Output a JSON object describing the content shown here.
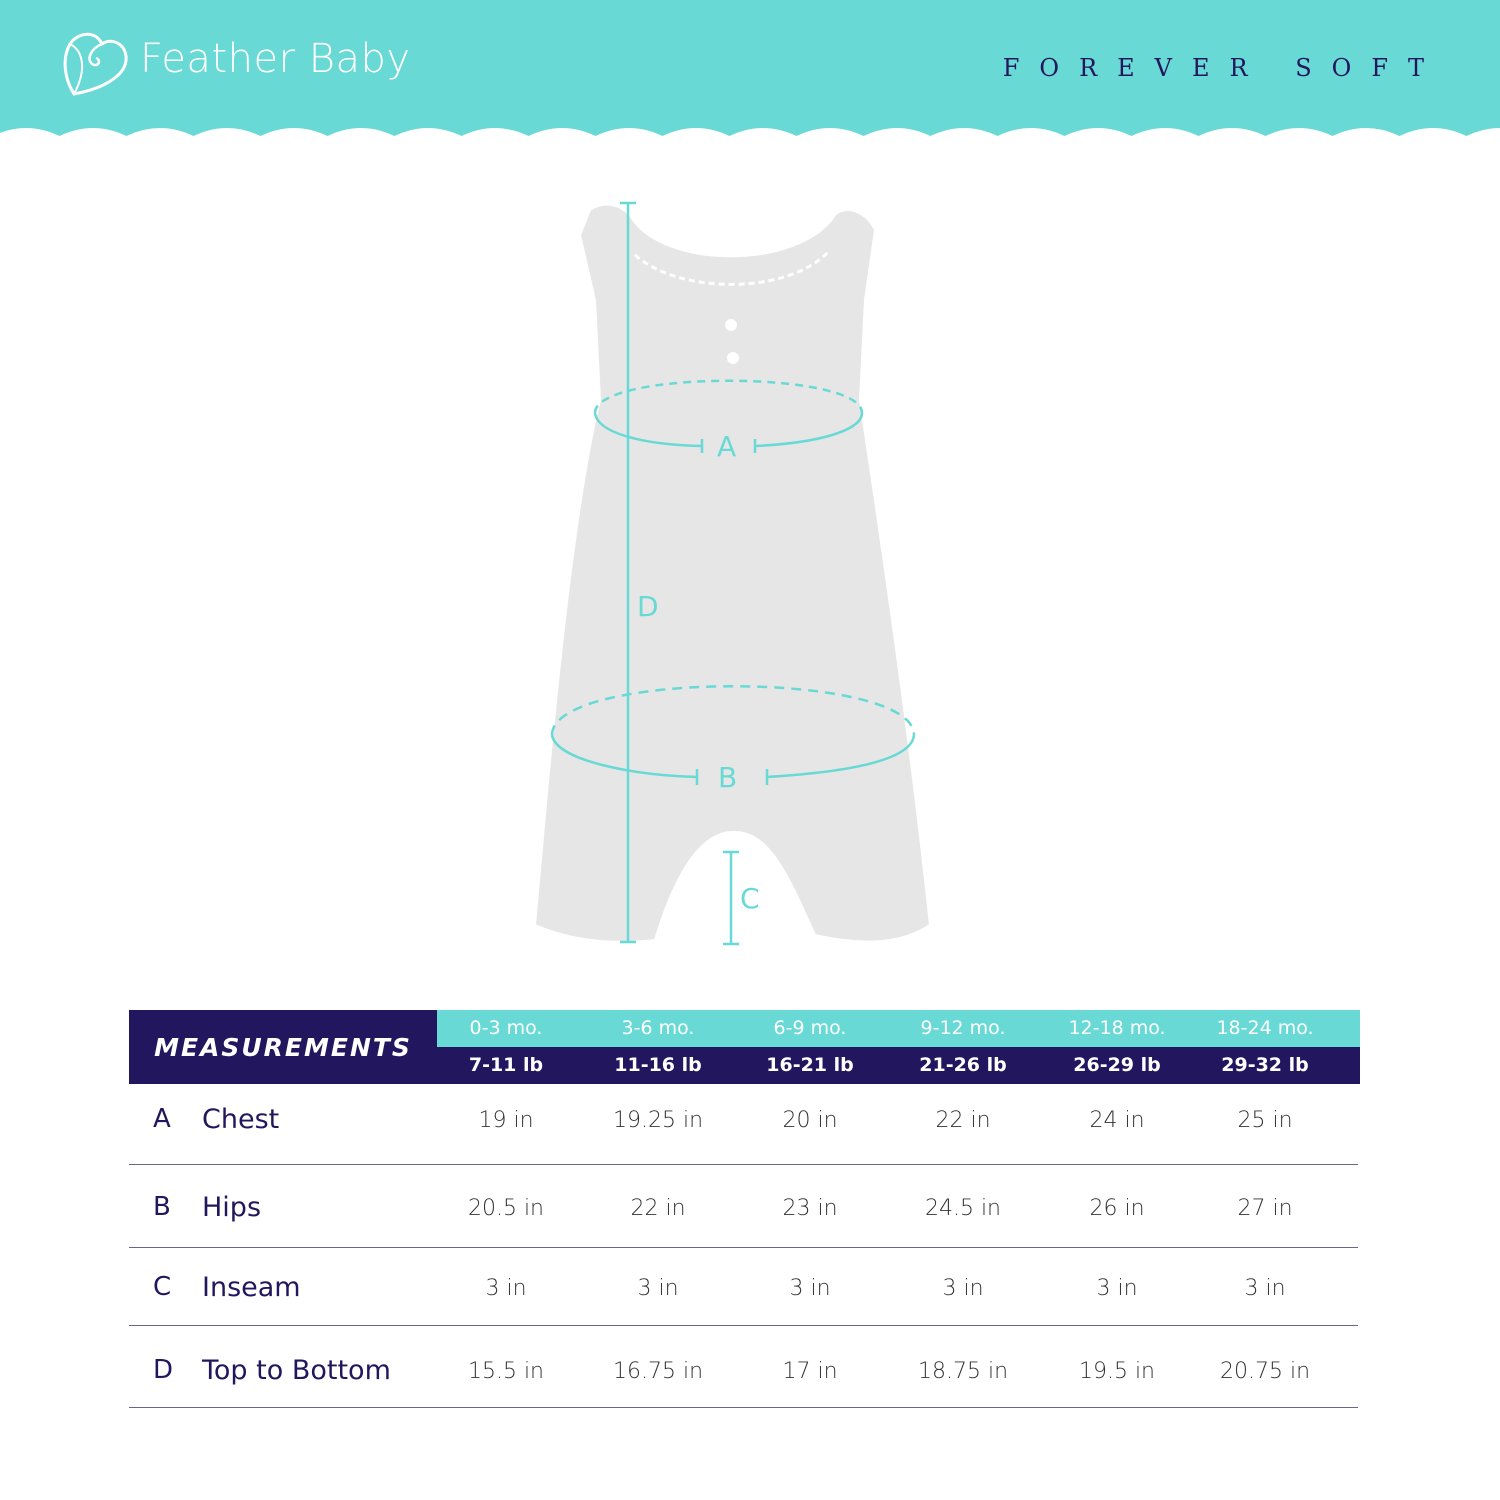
{
  "header": {
    "brand": "Feather Baby",
    "tagline": "FOREVER SOFT",
    "logo_icon": "shell-heart-icon",
    "colors": {
      "teal": "#68d9d4",
      "navy": "#22175e",
      "garment": "#e6e6e6"
    }
  },
  "diagram": {
    "labels": {
      "A": "A",
      "B": "B",
      "C": "C",
      "D": "D"
    }
  },
  "table": {
    "title": "MEASUREMENTS",
    "ages": [
      "0-3 mo.",
      "3-6 mo.",
      "6-9 mo.",
      "9-12 mo.",
      "12-18 mo.",
      "18-24 mo."
    ],
    "weights": [
      "7-11 lb",
      "11-16 lb",
      "16-21 lb",
      "21-26 lb",
      "26-29 lb",
      "29-32 lb"
    ],
    "rows": [
      {
        "letter": "A",
        "name": "Chest",
        "values": [
          "19 in",
          "19.25 in",
          "20 in",
          "22 in",
          "24 in",
          "25 in"
        ]
      },
      {
        "letter": "B",
        "name": "Hips",
        "values": [
          "20.5 in",
          "22 in",
          "23 in",
          "24.5 in",
          "26 in",
          "27 in"
        ]
      },
      {
        "letter": "C",
        "name": "Inseam",
        "values": [
          "3 in",
          "3 in",
          "3 in",
          "3 in",
          "3 in",
          "3 in"
        ]
      },
      {
        "letter": "D",
        "name": "Top to Bottom",
        "values": [
          "15.5 in",
          "16.75 in",
          "17 in",
          "18.75 in",
          "19.5 in",
          "20.75 in"
        ]
      }
    ]
  }
}
